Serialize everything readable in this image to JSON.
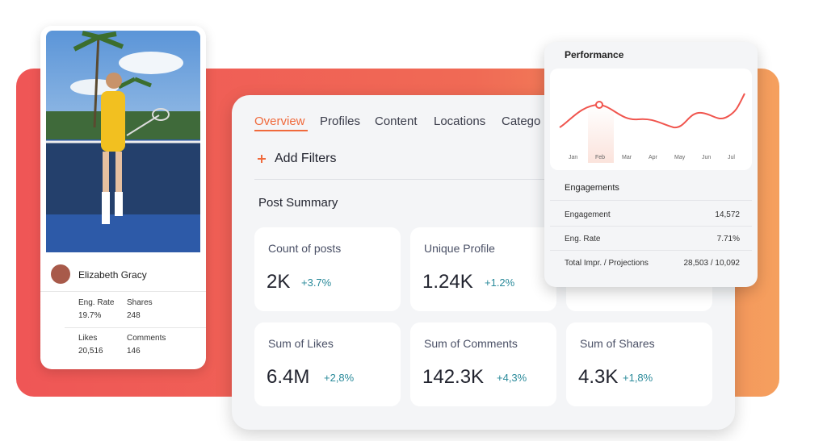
{
  "profile": {
    "name": "Elizabeth Gracy",
    "stats": [
      {
        "label": "Eng. Rate",
        "value": "19.7%"
      },
      {
        "label": "Shares",
        "value": "248"
      },
      {
        "label": "Likes",
        "value": "20,516"
      },
      {
        "label": "Comments",
        "value": "146"
      }
    ]
  },
  "tabs": [
    "Overview",
    "Profiles",
    "Content",
    "Locations",
    "Catego"
  ],
  "add_filters": "Add Filters",
  "post_summary": {
    "title": "Post Summary",
    "cards": [
      {
        "label": "Count of posts",
        "value": "2K",
        "change": "+3.7%"
      },
      {
        "label": "Unique Profile",
        "value": "1.24K",
        "change": "+1.2%"
      },
      {
        "label": "Sum of Likes",
        "value": "6.4M",
        "change": "+2,8%"
      },
      {
        "label": "Sum of Comments",
        "value": "142.3K",
        "change": "+4,3%"
      },
      {
        "label": "Sum of Shares",
        "value": "4.3K",
        "change": "+1,8%"
      }
    ]
  },
  "performance": {
    "title": "Performance",
    "months": [
      "Jan",
      "Feb",
      "Mar",
      "Apr",
      "May",
      "Jun",
      "Jul"
    ],
    "engagements": {
      "title": "Engagements",
      "rows": [
        {
          "label": "Engagement",
          "value": "14,572"
        },
        {
          "label": "Eng. Rate",
          "value": "7.71%"
        },
        {
          "label": "Total Impr. / Projections",
          "value": "28,503 / 10,092"
        }
      ]
    }
  }
}
